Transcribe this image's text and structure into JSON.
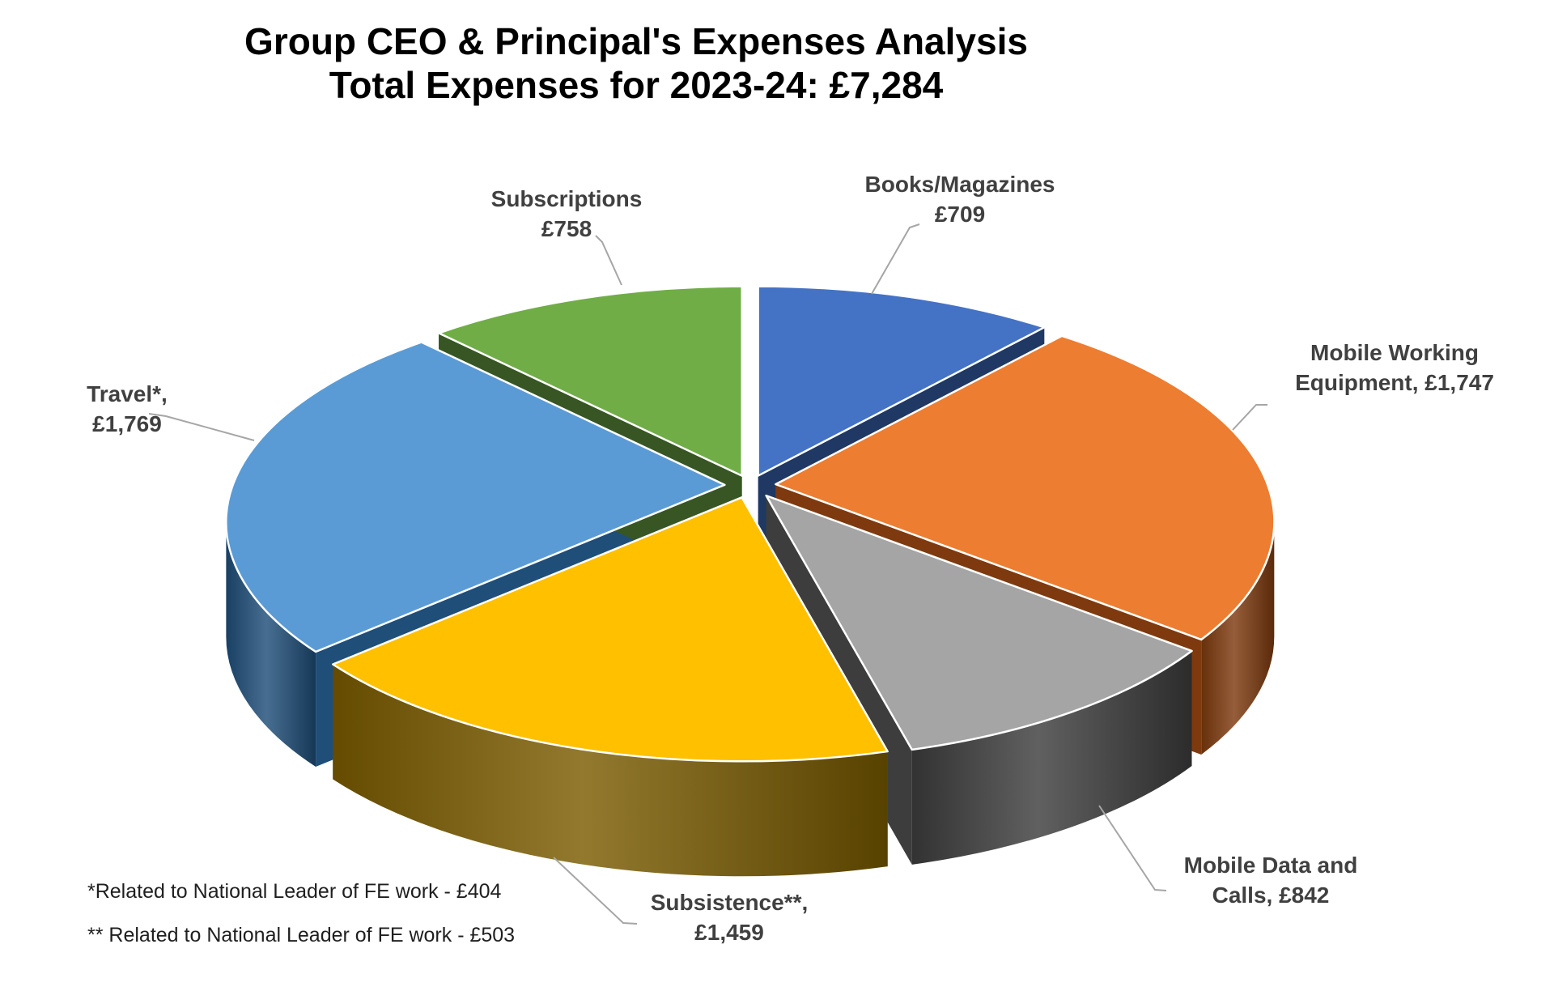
{
  "title": {
    "line1": "Group CEO & Principal's Expenses Analysis",
    "line2": "Total Expenses for 2023-24: £7,284"
  },
  "footnotes": [
    "*Related to National Leader of FE work - £404",
    "** Related to National Leader of FE work - £503"
  ],
  "chart_data": {
    "type": "pie",
    "style": "3d-exploded",
    "title": "Group CEO & Principal's Expenses Analysis",
    "subtitle": "Total Expenses for 2023-24: £7,284",
    "total_label": "£7,284",
    "total_value": 7284,
    "currency": "£",
    "start_angle_deg": 0,
    "direction": "clockwise",
    "legend": "none",
    "leader_line_color": "#A6A6A6",
    "label_color": "#404040",
    "slices": [
      {
        "label": "Books/Magazines",
        "value": 709,
        "display": "£709",
        "color": "#4472C4",
        "side_color": "#1F3864",
        "label_lines": [
          "Books/Magazines",
          "£709"
        ]
      },
      {
        "label": "Mobile Working Equipment",
        "value": 1747,
        "display": "£1,747",
        "color": "#ED7D31",
        "side_color": "#7E3A0E",
        "label_lines": [
          "Mobile Working",
          "Equipment, £1,747"
        ]
      },
      {
        "label": "Mobile Data and Calls",
        "value": 842,
        "display": "£842",
        "color": "#A5A5A5",
        "side_color": "#3D3D3D",
        "label_lines": [
          "Mobile Data and",
          "Calls, £842"
        ]
      },
      {
        "label": "Subsistence",
        "value": 1459,
        "display": "£1,459",
        "color": "#FFC000",
        "side_color": "#7A5C00",
        "label_lines": [
          "Subsistence**,",
          "£1,459"
        ]
      },
      {
        "label": "Travel",
        "value": 1769,
        "display": "£1,769",
        "color": "#5B9BD5",
        "side_color": "#1F4E79",
        "label_lines": [
          "Travel*,",
          "£1,769"
        ]
      },
      {
        "label": "Subscriptions",
        "value": 758,
        "display": "£758",
        "color": "#70AD47",
        "side_color": "#375623",
        "label_lines": [
          "Subscriptions",
          "£758"
        ]
      }
    ]
  }
}
